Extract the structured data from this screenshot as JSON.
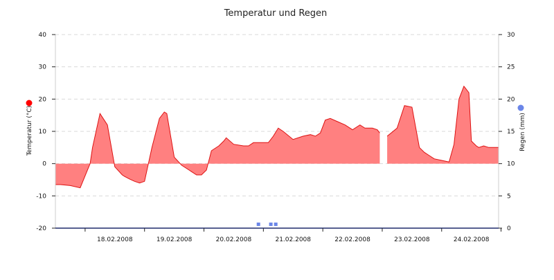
{
  "chart_data": {
    "type": "area",
    "title": "Temperatur und Regen",
    "ylabel_left": "Temperatur (°C)",
    "ylabel_right": "Regen (mm)",
    "xlabel": "",
    "ylim_left": [
      -20,
      40
    ],
    "ylim_right": [
      0,
      30
    ],
    "y_ticks_left": [
      "-20",
      "-10",
      "0",
      "10",
      "20",
      "30",
      "40"
    ],
    "y_ticks_right": [
      "0",
      "5",
      "10",
      "15",
      "20",
      "25",
      "30"
    ],
    "x_range": [
      "17.02.2008 12:00",
      "24.02.2008 23:00"
    ],
    "x_tick_labels": [
      "18.02.2008",
      "19.02.2008",
      "20.02.2008",
      "21.02.2008",
      "22.02.2008",
      "23.02.2008",
      "24.02.2008"
    ],
    "grid": "horizontal dashed",
    "colors": {
      "temperature_fill": "#ff8080",
      "temperature_line": "#dd1111",
      "rain_marker": "#6b86e8",
      "left_axis_marker": "#ff0000",
      "right_axis_marker": "#6b86e8"
    },
    "series": [
      {
        "axis": "left",
        "x": [
          "17.02.2008 12:00",
          "17.02.2008 14:00",
          "17.02.2008 18:00",
          "17.02.2008 22:00",
          "18.02.2008 02:00",
          "18.02.2008 03:00",
          "18.02.2008 06:00",
          "18.02.2008 09:00",
          "18.02.2008 12:00",
          "18.02.2008 15:00",
          "18.02.2008 16:00",
          "18.02.2008 18:00",
          "18.02.2008 20:00",
          "18.02.2008 22:00",
          "19.02.2008 00:00",
          "19.02.2008 03:00",
          "19.02.2008 06:00",
          "19.02.2008 08:00",
          "19.02.2008 09:00",
          "19.02.2008 12:00",
          "19.02.2008 15:00",
          "19.02.2008 18:00",
          "19.02.2008 19:00",
          "19.02.2008 21:00",
          "19.02.2008 23:00",
          "20.02.2008 01:00",
          "20.02.2008 03:00",
          "20.02.2008 06:00",
          "20.02.2008 08:00",
          "20.02.2008 09:00",
          "20.02.2008 12:00",
          "20.02.2008 16:00",
          "20.02.2008 18:00",
          "20.02.2008 20:00",
          "21.02.2008 00:00",
          "21.02.2008 02:00",
          "21.02.2008 04:00",
          "21.02.2008 06:00",
          "21.02.2008 08:00",
          "21.02.2008 12:00",
          "21.02.2008 16:00",
          "21.02.2008 19:00",
          "21.02.2008 21:00",
          "21.02.2008 23:00",
          "22.02.2008 01:00",
          "22.02.2008 03:00",
          "22.02.2008 06:00",
          "22.02.2008 09:00",
          "22.02.2008 12:00",
          "22.02.2008 15:00",
          "22.02.2008 17:00",
          "22.02.2008 20:00",
          "22.02.2008 22:00",
          "22.02.2008 23:00",
          "23.02.2008 02:00",
          "23.02.2008 06:00",
          "23.02.2008 09:00",
          "23.02.2008 12:00",
          "23.02.2008 15:00",
          "23.02.2008 17:00",
          "23.02.2008 19:00",
          "23.02.2008 21:00",
          "24.02.2008 00:00",
          "24.02.2008 03:00",
          "24.02.2008 05:00",
          "24.02.2008 07:00",
          "24.02.2008 09:00",
          "24.02.2008 11:00",
          "24.02.2008 12:00",
          "24.02.2008 14:00",
          "24.02.2008 15:00",
          "24.02.2008 17:00",
          "24.02.2008 19:00",
          "24.02.2008 21:00",
          "24.02.2008 23:00"
        ],
        "values": [
          -6.5,
          -6.5,
          -6.8,
          -7.5,
          0,
          5,
          15.5,
          12,
          -1,
          -3.5,
          -4,
          -4.8,
          -5.5,
          -6,
          -5.5,
          5,
          14,
          16,
          15.5,
          2,
          -0.5,
          -2,
          -2.5,
          -3.5,
          -3.5,
          -2,
          4,
          5.5,
          7,
          8,
          6,
          5.5,
          5.5,
          6.5,
          6.5,
          6.5,
          8.5,
          11,
          10,
          7.5,
          8.5,
          9,
          8.5,
          9.5,
          13.5,
          14,
          13,
          12,
          10.5,
          12,
          11,
          11,
          10.5,
          9.5,
          8.5,
          11,
          18,
          17.5,
          5,
          3.5,
          2.5,
          1.5,
          1,
          0.5,
          6,
          20,
          24,
          22,
          7,
          5.5,
          5,
          5.5,
          5,
          5,
          5
        ],
        "gap_after": "22.02.2008 23:00"
      },
      {
        "axis": "right",
        "type": "scatter",
        "x": [
          "20.02.2008 22:00",
          "21.02.2008 03:00",
          "21.02.2008 05:00"
        ],
        "values": [
          0.6,
          0.6,
          0.6
        ]
      }
    ]
  }
}
